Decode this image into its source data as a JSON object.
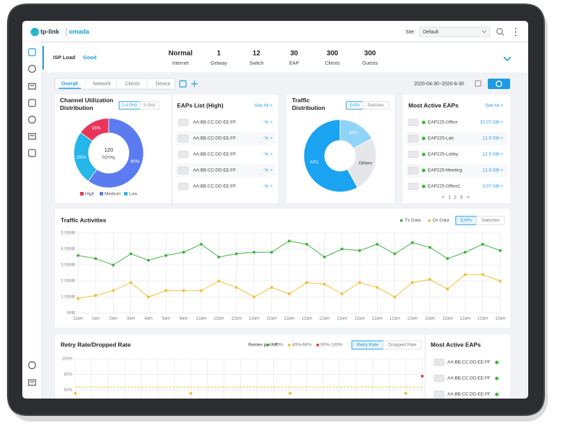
{
  "header": {
    "brand": "tp-link",
    "product": "omada",
    "site_label": "Site:",
    "site_value": "Default"
  },
  "status": {
    "isp_label": "ISP Load",
    "isp_value": "Good",
    "items": [
      {
        "value": "Normal",
        "label": "Internet"
      },
      {
        "value": "1",
        "label": "Getway"
      },
      {
        "value": "12",
        "label": "Switch"
      },
      {
        "value": "30",
        "label": "EAP"
      },
      {
        "value": "300",
        "label": "Clients"
      },
      {
        "value": "300",
        "label": "Guests"
      }
    ]
  },
  "tabs": [
    "Overall",
    "Network",
    "Clients",
    "Device"
  ],
  "date_range": "2020-04-30~2020-6-30",
  "channel": {
    "title": "Channel Utilization Distribution",
    "bands": [
      "2.4 GHz",
      "5 GHz"
    ],
    "center_value": "120",
    "center_label": "TOTAL",
    "segments": [
      {
        "name": "High",
        "value": 15,
        "label": "15%",
        "color": "#e8355a"
      },
      {
        "name": "Medium",
        "value": 60,
        "label": "60%",
        "color": "#5b7cf0"
      },
      {
        "name": "Low",
        "value": 25,
        "label": "25%",
        "color": "#25b6ea"
      }
    ]
  },
  "eaps_list": {
    "title": "EAPs List (High)",
    "see_all": "See All >",
    "rows": [
      {
        "mac": "AA:BB:CC:DD:EE:FF",
        "value": "- %  >"
      },
      {
        "mac": "AA:BB:CC:DD:EE:FF",
        "value": "- %  >"
      },
      {
        "mac": "AA:BB:CC:DD:EE:FF",
        "value": "- %  >"
      },
      {
        "mac": "AA:BB:CC:DD:EE:FF",
        "value": "- %  >"
      },
      {
        "mac": "AA:BB:CC:DD:EE:FF",
        "value": "- %  >"
      }
    ]
  },
  "traffic_distribution": {
    "title": "Traffic Distribution",
    "toggles": [
      "EAPs",
      "Switches"
    ],
    "segments": [
      {
        "name": "AP1",
        "value": 58,
        "color": "#1aa3f0"
      },
      {
        "name": "AP2",
        "value": 17,
        "color": "#8fd3f8"
      },
      {
        "name": "Others",
        "value": 25,
        "color": "#e4e6ea"
      }
    ]
  },
  "most_active": {
    "title": "Most Active EAPs",
    "see_all": "See All >",
    "rows": [
      {
        "name": "EAP225-Office",
        "value": "32.07 GB  >"
      },
      {
        "name": "EAP225-Lab",
        "value": "12.5 GB  >"
      },
      {
        "name": "EAP225-Lobby",
        "value": "12.5 GB  >"
      },
      {
        "name": "EAP225-Meeting",
        "value": "12.5 GB  >"
      },
      {
        "name": "EAP225-Office1",
        "value": "3.07 GB  >"
      }
    ],
    "pager": [
      "<",
      "1",
      "2",
      "3",
      ">"
    ]
  },
  "traffic": {
    "title": "Traffic Activities",
    "toggles": [
      "EAPs",
      "Switches"
    ],
    "categories": [
      "12am",
      "1am",
      "2am",
      "3am",
      "4am",
      "5am",
      "6am",
      "12am",
      "12am",
      "12am",
      "12am",
      "12am",
      "12am",
      "12am",
      "12am",
      "12am",
      "12am",
      "12am",
      "12am",
      "12am",
      "12am",
      "12am",
      "12am",
      "12am",
      "12am"
    ],
    "ylim": [
      0,
      5
    ],
    "yticks": [
      {
        "value": 0,
        "label": "0MB"
      },
      {
        "value": 1,
        "label": "1.00MB"
      },
      {
        "value": 2,
        "label": "2.00MB"
      },
      {
        "value": 3,
        "label": "3.00MB"
      },
      {
        "value": 4,
        "label": "4.00MB"
      },
      {
        "value": 5,
        "label": "5.00MB"
      }
    ],
    "series": [
      {
        "name": "Tx Data",
        "color": "#3cb33c",
        "values": [
          3.6,
          3.4,
          3.0,
          3.7,
          3.3,
          3.6,
          3.8,
          4.3,
          3.5,
          3.7,
          3.8,
          3.8,
          4.5,
          4.3,
          3.5,
          4.0,
          3.9,
          4.3,
          3.7,
          4.4,
          4.1,
          3.4,
          3.8,
          4.3,
          3.9
        ]
      },
      {
        "name": "Dx Data",
        "color": "#f0c030",
        "values": [
          0.9,
          1.1,
          1.4,
          1.9,
          1.0,
          1.4,
          1.4,
          1.4,
          2.0,
          1.6,
          1.0,
          1.6,
          1.2,
          1.9,
          1.8,
          1.2,
          1.9,
          1.6,
          1.0,
          1.9,
          2.1,
          1.5,
          2.4,
          2.4,
          2.0
        ]
      }
    ]
  },
  "retry": {
    "title": "Retry Rate/Dropped Rate",
    "legend_title": "Retries per AP:",
    "legend": [
      {
        "name": "0-40%",
        "color": "#3cb33c"
      },
      {
        "name": "40%-66%",
        "color": "#f0c030"
      },
      {
        "name": "60%-100%",
        "color": "#e03a3a"
      }
    ],
    "toggles": [
      "Retry Rate",
      "Dropped Rate"
    ],
    "ylim": [
      0,
      100
    ],
    "xlim": [
      0,
      21
    ],
    "threshold": 64,
    "yticks": [
      {
        "value": 100,
        "label": "100%"
      },
      {
        "value": 80,
        "label": "80%"
      },
      {
        "value": 60,
        "label": "60%"
      }
    ],
    "points": [
      {
        "x": 0,
        "value": 56,
        "color": "#f0c030"
      },
      {
        "x": 7,
        "value": 56,
        "color": "#f0c030"
      },
      {
        "x": 13,
        "value": 56,
        "color": "#f0c030"
      },
      {
        "x": 20,
        "value": 56,
        "color": "#f0c030"
      },
      {
        "x": 21,
        "value": 78,
        "color": "#e03a3a"
      }
    ]
  },
  "active_bottom": {
    "title": "Most Active EAPs",
    "rows": [
      "AA:BB:CC:DD:EE:FF",
      "AA:BB:CC:DD:EE:FF",
      "AA:BB:CC:DD:EE:FF"
    ]
  }
}
